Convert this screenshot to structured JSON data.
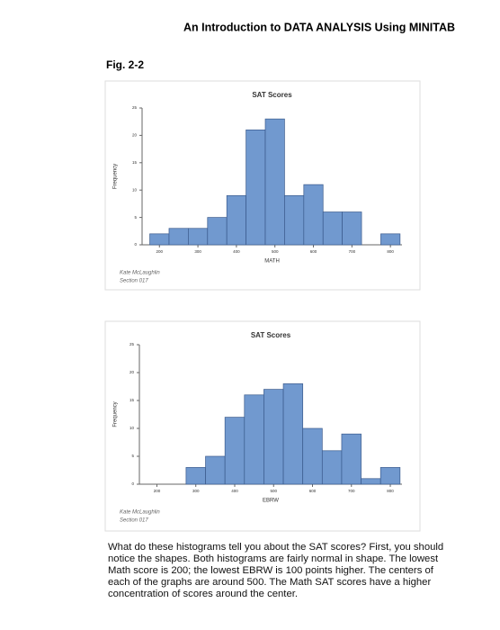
{
  "header": {
    "title": "An Introduction to DATA ANALYSIS Using MINITAB"
  },
  "figure_label": "Fig. 2-2",
  "chart_data": [
    {
      "type": "histogram",
      "title": "SAT Scores",
      "x_label": "MATH",
      "y_label": "Frequency",
      "bins": [
        175,
        225,
        275,
        325,
        375,
        425,
        475,
        525,
        575,
        625,
        675,
        725,
        775,
        825
      ],
      "values": [
        2,
        3,
        3,
        5,
        9,
        21,
        23,
        9,
        11,
        6,
        6,
        0,
        2
      ],
      "color": "#7199cf",
      "xlim": [
        155,
        830
      ],
      "ylim": [
        0,
        25
      ],
      "xticks": [
        200,
        300,
        400,
        500,
        600,
        700,
        800
      ],
      "yticks": [
        0,
        5,
        10,
        15,
        20,
        25
      ],
      "annotations": [
        "Kate McLaughlin",
        "Section 017"
      ]
    },
    {
      "type": "histogram",
      "title": "SAT Scores",
      "x_label": "EBRW",
      "y_label": "Frequency",
      "bins": [
        175,
        225,
        275,
        325,
        375,
        425,
        475,
        525,
        575,
        625,
        675,
        725,
        775,
        825
      ],
      "values": [
        0,
        0,
        3,
        5,
        12,
        16,
        17,
        18,
        10,
        6,
        9,
        1,
        3
      ],
      "color": "#7199cf",
      "xlim": [
        155,
        830
      ],
      "ylim": [
        0,
        25
      ],
      "xticks": [
        200,
        300,
        400,
        500,
        600,
        700,
        800
      ],
      "yticks": [
        0,
        5,
        10,
        15,
        20,
        25
      ],
      "annotations": [
        "Kate McLaughlin",
        "Section 017"
      ]
    }
  ],
  "paragraph": "What do these histograms tell you about the SAT scores? First, you should notice the shapes. Both histograms are fairly normal in shape. The lowest Math score is 200; the lowest EBRW is 100 points higher. The centers of each of the graphs are around 500. The Math SAT scores have a higher concentration of scores around the center."
}
